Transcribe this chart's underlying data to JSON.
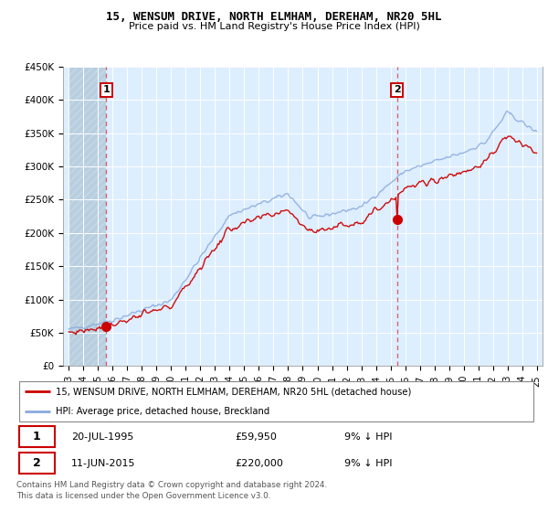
{
  "title": "15, WENSUM DRIVE, NORTH ELMHAM, DEREHAM, NR20 5HL",
  "subtitle": "Price paid vs. HM Land Registry's House Price Index (HPI)",
  "ylim": [
    0,
    450000
  ],
  "yticks": [
    0,
    50000,
    100000,
    150000,
    200000,
    250000,
    300000,
    350000,
    400000,
    450000
  ],
  "ytick_labels": [
    "£0",
    "£50K",
    "£100K",
    "£150K",
    "£200K",
    "£250K",
    "£300K",
    "£350K",
    "£400K",
    "£450K"
  ],
  "xstart": 1993,
  "xend": 2025,
  "marker1_year": 1995.55,
  "marker1_value": 59950,
  "marker1_label": "1",
  "marker1_date": "20-JUL-1995",
  "marker1_price": "£59,950",
  "marker1_hpi": "9% ↓ HPI",
  "marker2_year": 2015.44,
  "marker2_value": 220000,
  "marker2_label": "2",
  "marker2_date": "11-JUN-2015",
  "marker2_price": "£220,000",
  "marker2_hpi": "9% ↓ HPI",
  "legend_line1": "15, WENSUM DRIVE, NORTH ELMHAM, DEREHAM, NR20 5HL (detached house)",
  "legend_line2": "HPI: Average price, detached house, Breckland",
  "footer1": "Contains HM Land Registry data © Crown copyright and database right 2024.",
  "footer2": "This data is licensed under the Open Government Licence v3.0.",
  "hatch_color": "#c8d8e8",
  "plot_bg": "#ddeeff",
  "grid_color": "#ffffff",
  "red_line_color": "#cc0000",
  "blue_line_color": "#88aadd"
}
